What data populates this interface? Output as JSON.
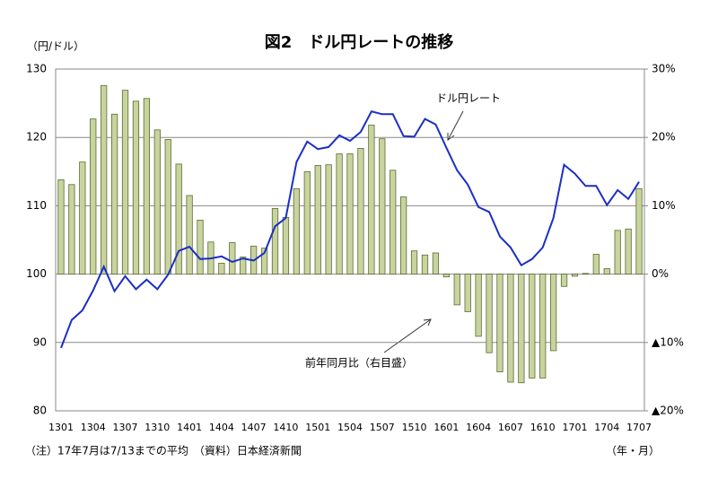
{
  "chart_data": {
    "type": "combo",
    "title": "図2　ドル円レートの推移",
    "y_label": "（円/ドル）",
    "x_label": "（年・月）",
    "note": "（注）17年7月は7/13までの平均　（資料）日本経済新聞",
    "annotations": [
      "ドル円レート",
      "前年同月比（右目盛）"
    ],
    "categories": [
      "1301",
      null,
      null,
      "1304",
      null,
      null,
      "1307",
      null,
      null,
      "1310",
      null,
      null,
      "1401",
      null,
      null,
      "1404",
      null,
      null,
      "1407",
      null,
      null,
      "1410",
      null,
      null,
      "1501",
      null,
      null,
      "1504",
      null,
      null,
      "1507",
      null,
      null,
      "1510",
      null,
      null,
      "1601",
      null,
      null,
      "1604",
      null,
      null,
      "1607",
      null,
      null,
      "1610",
      null,
      null,
      "1701",
      null,
      null,
      "1704",
      null,
      null,
      "1707"
    ],
    "series": [
      {
        "type": "bar",
        "axis": "y2",
        "color": "#c9d3a0",
        "edge": "#5b6b2f",
        "values": [
          13.8,
          13.1,
          16.4,
          22.7,
          27.6,
          23.4,
          26.9,
          25.3,
          25.7,
          21.1,
          19.7,
          16.1,
          11.5,
          7.9,
          4.7,
          1.6,
          4.6,
          2.5,
          4.1,
          3.8,
          9.6,
          8.3,
          12.5,
          15.0,
          15.9,
          16.0,
          17.6,
          17.6,
          18.4,
          21.8,
          19.8,
          15.2,
          11.3,
          3.4,
          2.8,
          3.1,
          -0.4,
          -4.5,
          -5.5,
          -9.1,
          -11.5,
          -14.3,
          -15.8,
          -15.9,
          -15.2,
          -15.2,
          -11.2,
          -1.8,
          -0.3,
          0.1,
          2.9,
          0.8,
          6.4,
          6.6,
          12.5
        ]
      },
      {
        "type": "line",
        "axis": "y",
        "color": "#1c2fc4",
        "values": [
          89.2,
          93.3,
          94.7,
          97.6,
          101.1,
          97.5,
          99.7,
          97.8,
          99.2,
          97.8,
          99.9,
          103.4,
          104.0,
          102.2,
          102.3,
          102.6,
          101.8,
          102.3,
          102.0,
          103.1,
          107.0,
          108.2,
          116.4,
          119.4,
          118.3,
          118.6,
          120.3,
          119.5,
          120.8,
          123.8,
          123.4,
          123.4,
          120.2,
          120.1,
          122.7,
          121.9,
          118.5,
          115.2,
          113.1,
          109.8,
          109.1,
          105.5,
          103.9,
          101.3,
          102.2,
          103.9,
          108.2,
          116.0,
          114.7,
          112.9,
          112.9,
          110.1,
          112.3,
          111.0,
          113.5
        ]
      }
    ],
    "ylim": [
      80,
      130
    ],
    "yticks": [
      80,
      90,
      100,
      110,
      120,
      130
    ],
    "y2lim": [
      -20,
      30
    ],
    "y2ticks": [
      {
        "value": -20,
        "label": "▲20%"
      },
      {
        "value": -10,
        "label": "▲10%"
      },
      {
        "value": 0,
        "label": "0%"
      },
      {
        "value": 10,
        "label": "10%"
      },
      {
        "value": 20,
        "label": "20%"
      },
      {
        "value": 30,
        "label": "30%"
      }
    ],
    "grid": true
  }
}
